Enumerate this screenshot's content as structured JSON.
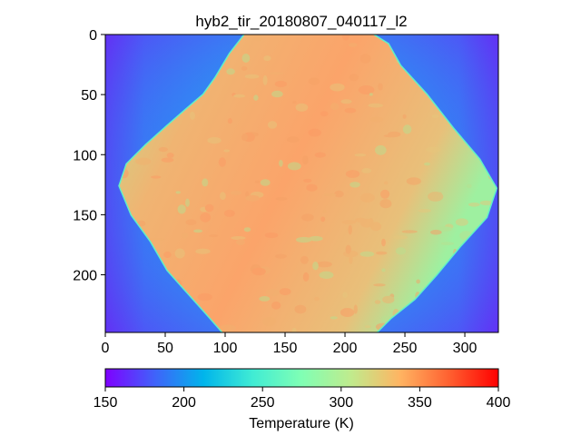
{
  "chart_data": [
    {
      "type": "heatmap",
      "title": "hyb2_tir_20180807_040117_l2",
      "xlabel": "",
      "ylabel": "",
      "xlim": [
        0,
        328
      ],
      "ylim": [
        248,
        0
      ],
      "x_ticks": [
        0,
        50,
        100,
        150,
        200,
        250,
        300
      ],
      "y_ticks": [
        0,
        50,
        100,
        150,
        200
      ],
      "image_content": "Thermal infrared image of asteroid Ryugu (diamond-shaped body)",
      "background_temperature_K": 170,
      "body_temperature_range_K": [
        300,
        350
      ],
      "body_outline": [
        [
          118,
          -2
        ],
        [
          178,
          -2
        ],
        [
          220,
          -2
        ],
        [
          236,
          8
        ],
        [
          246,
          26
        ],
        [
          268,
          50
        ],
        [
          290,
          78
        ],
        [
          312,
          104
        ],
        [
          326,
          128
        ],
        [
          318,
          152
        ],
        [
          296,
          176
        ],
        [
          276,
          200
        ],
        [
          258,
          220
        ],
        [
          238,
          236
        ],
        [
          224,
          250
        ],
        [
          100,
          250
        ],
        [
          86,
          234
        ],
        [
          68,
          214
        ],
        [
          52,
          196
        ],
        [
          38,
          172
        ],
        [
          22,
          150
        ],
        [
          12,
          126
        ],
        [
          18,
          108
        ],
        [
          34,
          92
        ],
        [
          52,
          76
        ],
        [
          68,
          62
        ],
        [
          82,
          50
        ],
        [
          92,
          36
        ],
        [
          104,
          16
        ]
      ],
      "colormap": "rainbow"
    },
    {
      "type": "heatmap",
      "role": "colorbar",
      "xlabel": "Temperature (K)",
      "range": [
        150,
        400
      ],
      "ticks": [
        150,
        200,
        250,
        300,
        350,
        400
      ],
      "colormap": "rainbow"
    }
  ]
}
